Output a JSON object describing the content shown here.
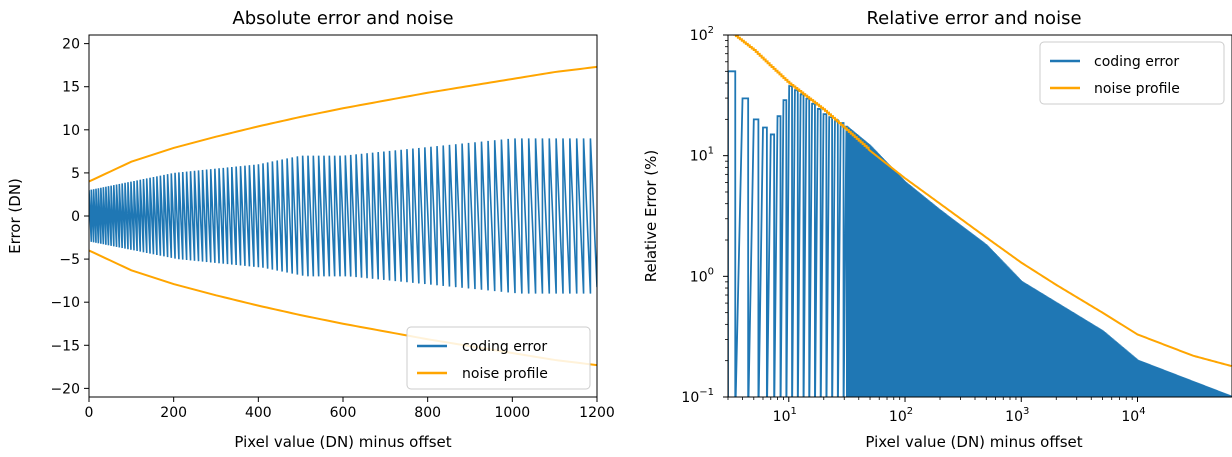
{
  "colors": {
    "coding_error": "#1f77b4",
    "noise_profile": "#ffa500"
  },
  "chart_data": [
    {
      "type": "line",
      "title": "Absolute error and noise",
      "xlabel": "Pixel value (DN) minus offset",
      "ylabel": "Error (DN)",
      "xlim": [
        0,
        1200
      ],
      "ylim": [
        -21,
        21
      ],
      "x_scale": "linear",
      "y_scale": "linear",
      "xticks": [
        0,
        200,
        400,
        600,
        800,
        1000,
        1200
      ],
      "yticks": [
        -20,
        -15,
        -10,
        -5,
        0,
        5,
        10,
        15,
        20
      ],
      "xtick_labels": [
        "0",
        "200",
        "400",
        "600",
        "800",
        "1000",
        "1200"
      ],
      "ytick_labels": [
        "−20",
        "−15",
        "−10",
        "−5",
        "0",
        "5",
        "10",
        "15",
        "20"
      ],
      "legend_position": "lower-right",
      "grid": false,
      "series": [
        {
          "name": "coding error",
          "kind": "sawtooth",
          "envelope_x": [
            0,
            100,
            200,
            300,
            400,
            500,
            600,
            700,
            800,
            900,
            1000,
            1100,
            1200
          ],
          "envelope_amplitude": [
            3,
            4,
            5,
            5.5,
            6,
            7,
            7,
            7.5,
            8,
            8.5,
            9,
            9,
            9
          ]
        },
        {
          "name": "noise profile",
          "kind": "envelope",
          "x": [
            0,
            100,
            200,
            300,
            400,
            500,
            600,
            700,
            800,
            900,
            1000,
            1100,
            1200
          ],
          "upper": [
            4,
            6.3,
            7.9,
            9.2,
            10.4,
            11.5,
            12.5,
            13.4,
            14.3,
            15.1,
            15.9,
            16.7,
            17.3
          ],
          "lower": [
            -4,
            -6.3,
            -7.9,
            -9.2,
            -10.4,
            -11.5,
            -12.5,
            -13.4,
            -14.3,
            -15.1,
            -15.9,
            -16.7,
            -17.3
          ]
        }
      ]
    },
    {
      "type": "line",
      "title": "Relative error and noise",
      "xlabel": "Pixel value (DN) minus offset",
      "ylabel": "Relative Error (%)",
      "xlim": [
        3,
        65000
      ],
      "ylim": [
        0.1,
        100
      ],
      "x_scale": "log",
      "y_scale": "log",
      "xticks": [
        10,
        100,
        1000,
        10000
      ],
      "yticks": [
        0.1,
        1,
        10,
        100
      ],
      "xtick_labels": [
        [
          "10",
          "1"
        ],
        [
          "10",
          "2"
        ],
        [
          "10",
          "3"
        ],
        [
          "10",
          "4"
        ]
      ],
      "ytick_labels": [
        [
          "10",
          "−1"
        ],
        [
          "10",
          "0"
        ],
        [
          "10",
          "1"
        ],
        [
          "10",
          "2"
        ]
      ],
      "legend_position": "upper-right",
      "grid": false,
      "series": [
        {
          "name": "coding error",
          "kind": "log-sawtooth",
          "x": [
            3,
            5,
            7,
            10,
            14,
            20,
            30,
            50,
            100,
            200,
            500,
            1000,
            5000,
            10000,
            65000
          ],
          "peak": [
            50,
            20,
            15,
            38,
            30,
            22,
            18,
            12,
            6,
            3.5,
            1.8,
            0.9,
            0.35,
            0.2,
            0.1
          ]
        },
        {
          "name": "noise profile",
          "x": [
            3,
            5,
            7,
            10,
            20,
            30,
            50,
            100,
            200,
            500,
            1000,
            2000,
            5000,
            10000,
            30000,
            65000
          ],
          "y": [
            110,
            75,
            55,
            40,
            24,
            17,
            11,
            6.5,
            4,
            2.1,
            1.3,
            0.85,
            0.5,
            0.33,
            0.22,
            0.18
          ]
        }
      ]
    }
  ]
}
